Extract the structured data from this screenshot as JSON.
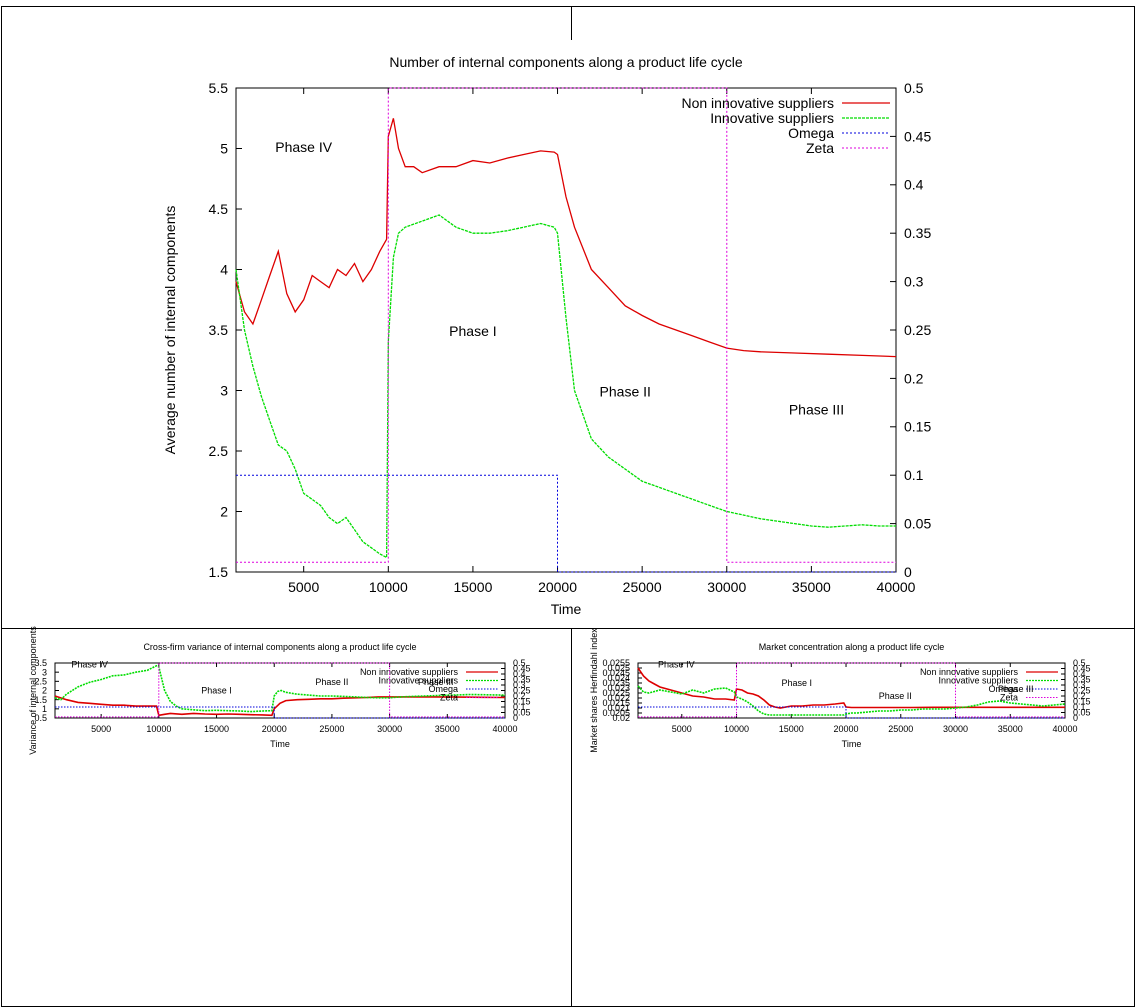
{
  "chart_data": [
    {
      "type": "line",
      "title": "Number of internal components along a product life cycle",
      "xlabel": "Time",
      "ylabel": "Average number of internal components",
      "xlim": [
        1000,
        40000
      ],
      "ylim": [
        1.5,
        5.5
      ],
      "y2lim": [
        0,
        0.5
      ],
      "x_ticks": [
        "5000",
        "10000",
        "15000",
        "20000",
        "25000",
        "30000",
        "35000",
        "40000"
      ],
      "y_ticks": [
        "1.5",
        "2",
        "2.5",
        "3",
        "3.5",
        "4",
        "4.5",
        "5",
        "5.5"
      ],
      "y2_ticks": [
        "0",
        "0.05",
        "0.1",
        "0.15",
        "0.2",
        "0.25",
        "0.3",
        "0.35",
        "0.4",
        "0.45",
        "0.5"
      ],
      "legend_position": "top-right",
      "grid": false,
      "annotations": [
        {
          "text": "Phase IV",
          "x": 5000,
          "y": 4.97
        },
        {
          "text": "Phase I",
          "x": 15000,
          "y": 3.45
        },
        {
          "text": "Phase II",
          "x": 24000,
          "y": 2.95
        },
        {
          "text": "Phase III",
          "x": 35300,
          "y": 2.8
        }
      ],
      "series": [
        {
          "name": "Non innovative suppliers",
          "color": "#dd0000",
          "axis": "y1",
          "x": [
            1000,
            1500,
            2000,
            2500,
            3000,
            3500,
            4000,
            4500,
            5000,
            5500,
            6000,
            6500,
            7000,
            7500,
            8000,
            8500,
            9000,
            9500,
            9900,
            10000,
            10300,
            10600,
            11000,
            11500,
            12000,
            13000,
            14000,
            15000,
            16000,
            17000,
            18000,
            19000,
            19800,
            20000,
            20500,
            21000,
            22000,
            23000,
            24000,
            25000,
            26000,
            27000,
            28000,
            29000,
            30000,
            31000,
            32000,
            34000,
            36000,
            38000,
            40000
          ],
          "y": [
            3.9,
            3.65,
            3.55,
            3.75,
            3.95,
            4.15,
            3.8,
            3.65,
            3.75,
            3.95,
            3.9,
            3.85,
            4.0,
            3.95,
            4.05,
            3.9,
            4.0,
            4.15,
            4.25,
            5.1,
            5.25,
            5.0,
            4.85,
            4.85,
            4.8,
            4.85,
            4.85,
            4.9,
            4.88,
            4.92,
            4.95,
            4.98,
            4.97,
            4.95,
            4.6,
            4.35,
            4.0,
            3.85,
            3.7,
            3.62,
            3.55,
            3.5,
            3.45,
            3.4,
            3.35,
            3.33,
            3.32,
            3.31,
            3.3,
            3.29,
            3.28
          ]
        },
        {
          "name": "Innovative suppliers",
          "color": "#00dd00",
          "axis": "y1",
          "x": [
            1000,
            1500,
            2000,
            2500,
            3000,
            3500,
            4000,
            4500,
            5000,
            5500,
            6000,
            6500,
            7000,
            7500,
            8000,
            8500,
            9000,
            9500,
            9900,
            10000,
            10300,
            10600,
            11000,
            12000,
            13000,
            14000,
            15000,
            16000,
            17000,
            18000,
            19000,
            19800,
            20000,
            20500,
            21000,
            22000,
            23000,
            24000,
            25000,
            26000,
            27000,
            28000,
            29000,
            30000,
            31000,
            32000,
            33000,
            34000,
            35000,
            36000,
            37000,
            38000,
            39000,
            40000
          ],
          "y": [
            4.0,
            3.5,
            3.2,
            2.95,
            2.75,
            2.55,
            2.5,
            2.35,
            2.15,
            2.1,
            2.05,
            1.95,
            1.9,
            1.95,
            1.85,
            1.75,
            1.7,
            1.65,
            1.62,
            3.4,
            4.1,
            4.3,
            4.35,
            4.4,
            4.45,
            4.35,
            4.3,
            4.3,
            4.32,
            4.35,
            4.38,
            4.35,
            4.3,
            3.6,
            3.0,
            2.6,
            2.45,
            2.35,
            2.25,
            2.2,
            2.15,
            2.1,
            2.05,
            2.0,
            1.97,
            1.94,
            1.92,
            1.9,
            1.88,
            1.87,
            1.88,
            1.89,
            1.88,
            1.88
          ]
        },
        {
          "name": "Omega",
          "color": "#0000dd",
          "axis": "y2",
          "x": [
            1000,
            20000,
            20000,
            40000
          ],
          "y": [
            0.1,
            0.1,
            0.0,
            0.0
          ]
        },
        {
          "name": "Zeta",
          "color": "#dd00dd",
          "axis": "y2",
          "x": [
            1000,
            10000,
            10000,
            30000,
            30000,
            40000
          ],
          "y": [
            0.01,
            0.01,
            0.5,
            0.5,
            0.01,
            0.01
          ]
        }
      ]
    },
    {
      "type": "line",
      "title": "Cross-firm variance of internal components along a product life cycle",
      "xlabel": "Time",
      "ylabel": "Variance of internal components",
      "xlim": [
        1000,
        40000
      ],
      "ylim": [
        0.5,
        3.5
      ],
      "y2lim": [
        0,
        0.5
      ],
      "x_ticks": [
        "5000",
        "10000",
        "15000",
        "20000",
        "25000",
        "30000",
        "35000",
        "40000"
      ],
      "y_ticks": [
        "0.5",
        "1",
        "1.5",
        "2",
        "2.5",
        "3",
        "3.5"
      ],
      "y2_ticks": [
        "0",
        "0.05",
        "0.1",
        "0.15",
        "0.2",
        "0.25",
        "0.3",
        "0.35",
        "0.4",
        "0.45",
        "0.5"
      ],
      "legend_position": "top-right",
      "grid": false,
      "annotations": [
        {
          "text": "Phase IV",
          "x": 4000,
          "y": 3.25
        },
        {
          "text": "Phase I",
          "x": 15000,
          "y": 1.85
        },
        {
          "text": "Phase II",
          "x": 25000,
          "y": 2.3
        },
        {
          "text": "Phase III",
          "x": 34000,
          "y": 2.3
        }
      ],
      "series": [
        {
          "name": "Non innovative suppliers",
          "color": "#dd0000",
          "axis": "y1",
          "x": [
            1000,
            2000,
            3000,
            4000,
            5000,
            6000,
            7000,
            8000,
            9000,
            9800,
            10000,
            10500,
            11000,
            12000,
            13000,
            14000,
            15000,
            16000,
            17000,
            18000,
            19000,
            19800,
            20000,
            20500,
            21000,
            22000,
            23000,
            24000,
            25000,
            26000,
            27000,
            28000,
            29000,
            30000,
            32000,
            34000,
            36000,
            38000,
            40000
          ],
          "y": [
            1.7,
            1.5,
            1.35,
            1.3,
            1.25,
            1.2,
            1.2,
            1.15,
            1.15,
            1.15,
            0.65,
            0.7,
            0.75,
            0.7,
            0.75,
            0.72,
            0.7,
            0.72,
            0.7,
            0.68,
            0.67,
            0.65,
            1.0,
            1.3,
            1.45,
            1.5,
            1.52,
            1.55,
            1.55,
            1.58,
            1.6,
            1.62,
            1.65,
            1.65,
            1.65,
            1.65,
            1.64,
            1.63,
            1.62
          ]
        },
        {
          "name": "Innovative suppliers",
          "color": "#00dd00",
          "axis": "y1",
          "x": [
            1000,
            1500,
            2000,
            3000,
            4000,
            5000,
            6000,
            7000,
            8000,
            9000,
            9800,
            10000,
            10500,
            11000,
            11500,
            12000,
            13000,
            14000,
            15000,
            16000,
            17000,
            18000,
            19000,
            19800,
            20000,
            20300,
            20600,
            21000,
            22000,
            23000,
            24000,
            25000,
            26000,
            27000,
            28000,
            29000,
            30000,
            31000,
            32000,
            33000,
            34000,
            35000,
            36000,
            37000,
            38000,
            39000,
            40000
          ],
          "y": [
            1.6,
            1.5,
            1.8,
            2.2,
            2.45,
            2.6,
            2.8,
            2.85,
            3.0,
            3.1,
            3.35,
            3.3,
            2.0,
            1.4,
            1.15,
            1.0,
            0.95,
            0.9,
            0.92,
            0.9,
            0.88,
            0.85,
            0.88,
            0.9,
            1.7,
            1.95,
            2.0,
            1.9,
            1.8,
            1.75,
            1.7,
            1.7,
            1.68,
            1.65,
            1.62,
            1.6,
            1.6,
            1.65,
            1.68,
            1.7,
            1.72,
            1.75,
            1.76,
            1.78,
            1.77,
            1.76,
            1.75
          ]
        },
        {
          "name": "Omega",
          "color": "#0000dd",
          "axis": "y2",
          "x": [
            1000,
            20000,
            20000,
            40000
          ],
          "y": [
            0.1,
            0.1,
            0.0,
            0.0
          ]
        },
        {
          "name": "Zeta",
          "color": "#dd00dd",
          "axis": "y2",
          "x": [
            1000,
            10000,
            10000,
            30000,
            30000,
            40000
          ],
          "y": [
            0.01,
            0.01,
            0.5,
            0.5,
            0.01,
            0.01
          ]
        }
      ]
    },
    {
      "type": "line",
      "title": "Market concentration along a product life cycle",
      "xlabel": "Time",
      "ylabel": "Market shares Herfindahl index",
      "xlim": [
        1000,
        40000
      ],
      "ylim": [
        0.02,
        0.0255
      ],
      "y2lim": [
        0,
        0.5
      ],
      "x_ticks": [
        "5000",
        "10000",
        "15000",
        "20000",
        "25000",
        "30000",
        "35000",
        "40000"
      ],
      "y_ticks": [
        "0.02",
        "0.0205",
        "0.021",
        "0.0215",
        "0.022",
        "0.0225",
        "0.023",
        "0.0235",
        "0.024",
        "0.0245",
        "0.025",
        "0.0255"
      ],
      "y2_ticks": [
        "0",
        "0.05",
        "0.1",
        "0.15",
        "0.2",
        "0.25",
        "0.3",
        "0.35",
        "0.4",
        "0.45",
        "0.5"
      ],
      "legend_position": "top-right",
      "grid": false,
      "annotations": [
        {
          "text": "Phase IV",
          "x": 4500,
          "y": 0.02505
        },
        {
          "text": "Phase I",
          "x": 15500,
          "y": 0.0232
        },
        {
          "text": "Phase II",
          "x": 24500,
          "y": 0.0219
        },
        {
          "text": "Phase III",
          "x": 35500,
          "y": 0.0226
        }
      ],
      "series": [
        {
          "name": "Non innovative suppliers",
          "color": "#dd0000",
          "axis": "y1",
          "x": [
            1000,
            1500,
            2000,
            2500,
            3000,
            4000,
            5000,
            6000,
            7000,
            8000,
            9000,
            9800,
            10000,
            10500,
            11000,
            11500,
            12000,
            12500,
            13000,
            13500,
            14000,
            15000,
            16000,
            17000,
            18000,
            19000,
            19800,
            20000,
            20500,
            22000,
            24000,
            26000,
            28000,
            30000,
            32000,
            34000,
            36000,
            38000,
            40000
          ],
          "y": [
            0.025,
            0.0242,
            0.0237,
            0.0234,
            0.0231,
            0.0228,
            0.0225,
            0.0222,
            0.0221,
            0.0219,
            0.0219,
            0.0218,
            0.0229,
            0.0228,
            0.0225,
            0.0224,
            0.0222,
            0.0218,
            0.0213,
            0.0211,
            0.021,
            0.0212,
            0.0212,
            0.0213,
            0.0213,
            0.0214,
            0.0215,
            0.0211,
            0.02105,
            0.02105,
            0.02105,
            0.02105,
            0.02107,
            0.02107,
            0.02107,
            0.02107,
            0.02107,
            0.02107,
            0.02107
          ]
        },
        {
          "name": "Innovative suppliers",
          "color": "#00dd00",
          "axis": "y1",
          "x": [
            1000,
            1500,
            2000,
            3000,
            4000,
            5000,
            6000,
            7000,
            8000,
            9000,
            9800,
            10000,
            10500,
            11000,
            11500,
            12000,
            12500,
            13000,
            14000,
            15000,
            16000,
            17000,
            18000,
            19000,
            19800,
            20000,
            20500,
            21000,
            22000,
            23000,
            24000,
            25000,
            26000,
            27000,
            28000,
            29000,
            30000,
            31000,
            32000,
            33000,
            34000,
            35000,
            36000,
            37000,
            38000,
            39000,
            40000
          ],
          "y": [
            0.0232,
            0.0226,
            0.0225,
            0.0228,
            0.0226,
            0.0224,
            0.0228,
            0.0225,
            0.0229,
            0.023,
            0.0226,
            0.0221,
            0.0219,
            0.0216,
            0.0212,
            0.0207,
            0.0204,
            0.0203,
            0.0203,
            0.0203,
            0.0203,
            0.0203,
            0.0203,
            0.0203,
            0.0203,
            0.0204,
            0.0205,
            0.0205,
            0.0206,
            0.0207,
            0.0207,
            0.0208,
            0.0208,
            0.0209,
            0.0209,
            0.0209,
            0.021,
            0.0211,
            0.0213,
            0.0216,
            0.0217,
            0.0215,
            0.0214,
            0.0213,
            0.0212,
            0.0213,
            0.0214
          ]
        },
        {
          "name": "Omega",
          "color": "#0000dd",
          "axis": "y2",
          "x": [
            1000,
            20000,
            20000,
            40000
          ],
          "y": [
            0.1,
            0.1,
            0.0,
            0.0
          ]
        },
        {
          "name": "Zeta",
          "color": "#dd00dd",
          "axis": "y2",
          "x": [
            1000,
            10000,
            10000,
            30000,
            30000,
            40000
          ],
          "y": [
            0.01,
            0.01,
            0.5,
            0.5,
            0.01,
            0.01
          ]
        }
      ]
    }
  ]
}
